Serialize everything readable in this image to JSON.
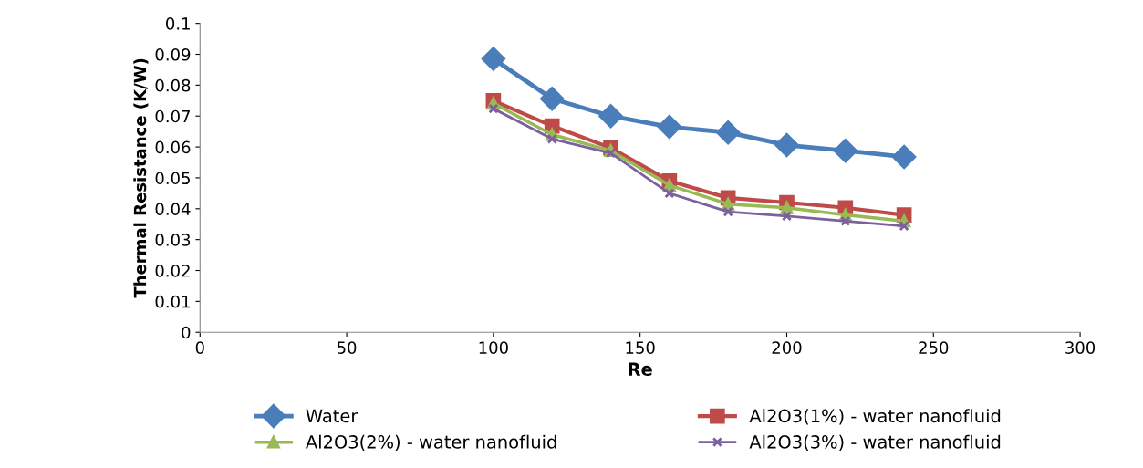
{
  "chart_data": {
    "type": "line",
    "xlabel": "Re",
    "ylabel": "Thermal Resistance (K/W)",
    "x": [
      100,
      120,
      140,
      160,
      180,
      200,
      220,
      240
    ],
    "series": [
      {
        "name": "Water",
        "color": "#4a7ebb",
        "marker": "diamond",
        "values": [
          0.0885,
          0.0756,
          0.07,
          0.0665,
          0.0647,
          0.0606,
          0.0588,
          0.0568
        ]
      },
      {
        "name": "Al2O3(1%) - water nanofluid",
        "color": "#be4b48",
        "marker": "square",
        "values": [
          0.075,
          0.0668,
          0.0597,
          0.049,
          0.0435,
          0.042,
          0.0403,
          0.038
        ]
      },
      {
        "name": "Al2O3(2%) - water nanofluid",
        "color": "#98b954",
        "marker": "triangle",
        "values": [
          0.0741,
          0.064,
          0.0588,
          0.0476,
          0.0415,
          0.0403,
          0.038,
          0.036
        ]
      },
      {
        "name": "Al2O3(3%) - water nanofluid",
        "color": "#7d60a0",
        "marker": "cross",
        "values": [
          0.0724,
          0.0626,
          0.058,
          0.045,
          0.039,
          0.0376,
          0.036,
          0.0344
        ]
      }
    ],
    "xlim": [
      0,
      300
    ],
    "xticks": [
      0,
      50,
      100,
      150,
      200,
      250,
      300
    ],
    "ylim": [
      0,
      0.1
    ],
    "yticks": [
      0,
      0.01,
      0.02,
      0.03,
      0.04,
      0.05,
      0.06,
      0.07,
      0.08,
      0.09,
      0.1
    ],
    "grid": false,
    "legend": "bottom",
    "line_style": "solid"
  }
}
